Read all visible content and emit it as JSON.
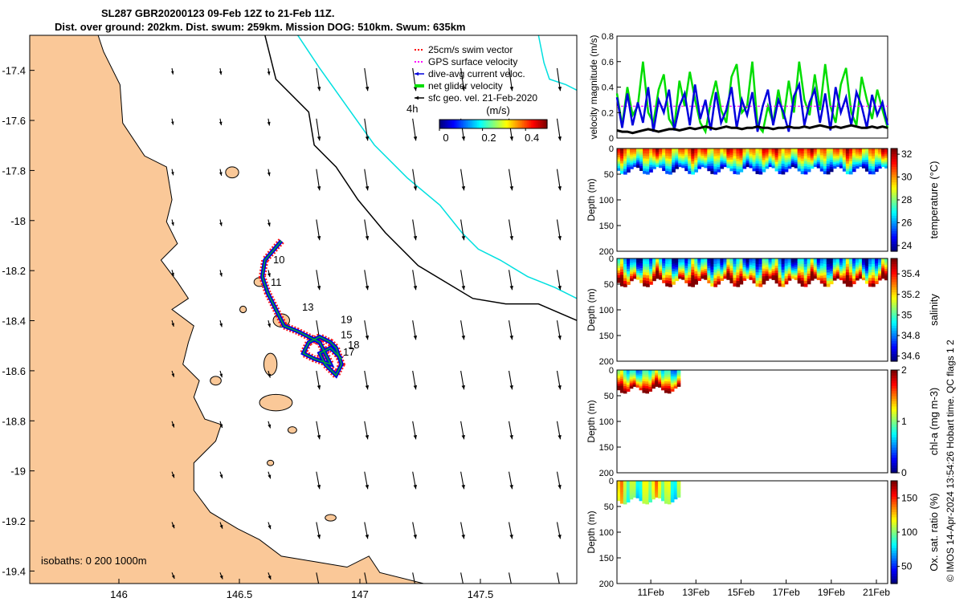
{
  "title_line1": "SL287 GBR20200123 09-Feb 12Z to 21-Feb 11Z.",
  "title_line2": "Dist. over ground: 202km. Dist. swum: 259km. Mission DOG: 510km. Swum: 635km",
  "credit": "© IMOS 14-Apr-2024 13:54:26 Hobart time. QC flags 1  2",
  "colors": {
    "land": "#fac898",
    "track": "#0000dd",
    "swim": "#ff0000",
    "gps": "#ff00ff",
    "net": "#00dd00",
    "isobath_200": "#000000",
    "isobath_1000": "#00e0e0"
  },
  "chart_data": [
    {
      "type": "map",
      "xticks": [
        "146",
        "146.5",
        "147",
        "147.5"
      ],
      "xtick_values": [
        146,
        146.5,
        147,
        147.5
      ],
      "yticks": [
        "-17.4",
        "-17.6",
        "-17.8",
        "-18",
        "-18.2",
        "-18.4",
        "-18.6",
        "-18.8",
        "-19",
        "-19.2",
        "-19.4"
      ],
      "ytick_values": [
        -17.4,
        -17.6,
        -17.8,
        -18,
        -18.2,
        -18.4,
        -18.6,
        -18.8,
        -19,
        -19.2,
        -19.4
      ],
      "xlim": [
        145.63,
        147.9
      ],
      "ylim": [
        -19.45,
        -17.26
      ],
      "legend": [
        {
          "label": "25cm/s swim vector",
          "color": "#ff0000",
          "style": "dash"
        },
        {
          "label": "GPS surface velocity",
          "color": "#ff00ff",
          "style": "dash"
        },
        {
          "label": "dive-avg current veloc.",
          "color": "#0000dd",
          "style": "arrow"
        },
        {
          "label": "net glider velocity",
          "color": "#00dd00",
          "style": "thick"
        },
        {
          "label": "sfc geo. vel. 21-Feb-2020",
          "color": "#000000",
          "style": "arrow"
        }
      ],
      "time_label": "4h",
      "colorbar_label": "(m/s)",
      "colorbar_ticks": [
        "0",
        "0.2",
        "0.4"
      ],
      "colorbar_tick_values": [
        0,
        0.2,
        0.4
      ],
      "colorbar_range": [
        0,
        0.5
      ],
      "isobaths_label": "isobaths: 0   200  1000m",
      "day_labels": [
        {
          "text": "10",
          "lon": 146.64,
          "lat": -18.17
        },
        {
          "text": "11",
          "lon": 146.63,
          "lat": -18.26
        },
        {
          "text": "13",
          "lon": 146.76,
          "lat": -18.36
        },
        {
          "text": "19",
          "lon": 146.92,
          "lat": -18.41
        },
        {
          "text": "15",
          "lon": 146.92,
          "lat": -18.47
        },
        {
          "text": "18",
          "lon": 146.95,
          "lat": -18.51
        },
        {
          "text": "17",
          "lon": 146.93,
          "lat": -18.54
        }
      ]
    },
    {
      "type": "line",
      "ylabel": "velocity magnitude (m/s)",
      "ylim": [
        0,
        0.8
      ],
      "yticks": [
        "0",
        "0.2",
        "0.4",
        "0.6",
        "0.8"
      ],
      "ytick_values": [
        0,
        0.2,
        0.4,
        0.6,
        0.8
      ],
      "xlim": [
        9.5,
        21.5
      ],
      "series": [
        {
          "color": "#00dd00",
          "values": [
            0.35,
            0.1,
            0.4,
            0.18,
            0.25,
            0.6,
            0.2,
            0.12,
            0.38,
            0.5,
            0.15,
            0.08,
            0.45,
            0.25,
            0.52,
            0.3,
            0.12,
            0.05,
            0.28,
            0.45,
            0.22,
            0.12,
            0.48,
            0.58,
            0.2,
            0.25,
            0.6,
            0.1,
            0.05,
            0.25,
            0.12,
            0.38,
            0.15,
            0.45,
            0.2,
            0.6,
            0.3,
            0.18,
            0.5,
            0.22,
            0.58,
            0.25,
            0.12,
            0.42,
            0.55,
            0.2,
            0.1,
            0.48,
            0.3,
            0.15,
            0.38,
            0.22,
            0.08
          ]
        },
        {
          "color": "#ff00ff",
          "values": [
            0.25,
            0.25,
            0.25,
            0.25,
            0.25,
            0.25,
            0.25,
            0.25,
            0.25,
            0.25,
            0.25,
            0.25,
            0.25,
            0.25,
            0.25,
            0.25,
            0.25,
            0.25,
            0.25,
            0.25,
            0.25,
            0.25,
            0.25,
            0.25,
            0.25,
            0.25,
            0.25,
            0.25,
            0.25,
            0.25,
            0.25,
            0.25,
            0.25,
            0.25,
            0.25,
            0.25,
            0.25,
            0.25,
            0.25,
            0.25,
            0.25,
            0.25,
            0.25,
            0.25,
            0.25,
            0.25,
            0.25,
            0.25,
            0.25,
            0.25,
            0.25,
            0.25,
            0.25
          ]
        },
        {
          "color": "#0000dd",
          "values": [
            0.32,
            0.08,
            0.35,
            0.1,
            0.28,
            0.12,
            0.4,
            0.05,
            0.3,
            0.2,
            0.38,
            0.06,
            0.25,
            0.35,
            0.1,
            0.42,
            0.15,
            0.3,
            0.06,
            0.36,
            0.12,
            0.22,
            0.4,
            0.08,
            0.3,
            0.18,
            0.36,
            0.05,
            0.25,
            0.38,
            0.1,
            0.3,
            0.2,
            0.05,
            0.33,
            0.42,
            0.1,
            0.28,
            0.38,
            0.12,
            0.35,
            0.06,
            0.4,
            0.2,
            0.32,
            0.1,
            0.36,
            0.25,
            0.08,
            0.34,
            0.18,
            0.28,
            0.1
          ]
        },
        {
          "color": "#000000",
          "values": [
            0.06,
            0.05,
            0.05,
            0.04,
            0.05,
            0.06,
            0.07,
            0.06,
            0.05,
            0.06,
            0.07,
            0.07,
            0.06,
            0.07,
            0.08,
            0.07,
            0.08,
            0.09,
            0.08,
            0.07,
            0.08,
            0.09,
            0.08,
            0.08,
            0.07,
            0.08,
            0.08,
            0.09,
            0.08,
            0.08,
            0.07,
            0.08,
            0.08,
            0.09,
            0.08,
            0.08,
            0.09,
            0.08,
            0.09,
            0.1,
            0.09,
            0.08,
            0.09,
            0.08,
            0.09,
            0.1,
            0.09,
            0.08,
            0.08,
            0.09,
            0.08,
            0.09,
            0.08
          ]
        }
      ]
    },
    {
      "type": "heatmap",
      "ylabel": "Depth (m)",
      "ylim": [
        200,
        0
      ],
      "yticks": [
        "0",
        "50",
        "100",
        "150",
        "200"
      ],
      "ytick_values": [
        0,
        50,
        100,
        150,
        200
      ],
      "xlim": [
        9.5,
        21.5
      ],
      "data_x_range": [
        9.5,
        21.5
      ],
      "data_depth": [
        0,
        50
      ],
      "colorbar_label": "temperature (°C)",
      "colorbar_ticks": [
        "24",
        "26",
        "28",
        "30",
        "32"
      ],
      "colorbar_tick_values": [
        24,
        26,
        28,
        30,
        32
      ],
      "colorbar_range": [
        23.5,
        32.5
      ],
      "surface_value": 30.5,
      "deep_value": 25
    },
    {
      "type": "heatmap",
      "ylabel": "Depth (m)",
      "ylim": [
        200,
        0
      ],
      "yticks": [
        "0",
        "50",
        "100",
        "150",
        "200"
      ],
      "ytick_values": [
        0,
        50,
        100,
        150,
        200
      ],
      "xlim": [
        9.5,
        21.5
      ],
      "data_x_range": [
        9.5,
        21.5
      ],
      "data_depth": [
        0,
        55
      ],
      "colorbar_label": "salinity",
      "colorbar_ticks": [
        "34.6",
        "34.8",
        "35",
        "35.2",
        "35.4"
      ],
      "colorbar_tick_values": [
        34.6,
        34.8,
        35,
        35.2,
        35.4
      ],
      "colorbar_range": [
        34.55,
        35.55
      ],
      "surface_value": 34.8,
      "deep_value": 35.5
    },
    {
      "type": "heatmap",
      "ylabel": "Depth (m)",
      "ylim": [
        200,
        0
      ],
      "yticks": [
        "0",
        "50",
        "100",
        "150",
        "200"
      ],
      "ytick_values": [
        0,
        50,
        100,
        150,
        200
      ],
      "xlim": [
        9.5,
        21.5
      ],
      "data_x_range": [
        9.5,
        12.3
      ],
      "data_depth": [
        0,
        45
      ],
      "colorbar_label": "chl-a (mg m-3)",
      "colorbar_ticks": [
        "0",
        "1",
        "2"
      ],
      "colorbar_tick_values": [
        0,
        1,
        2
      ],
      "colorbar_range": [
        0,
        2
      ],
      "surface_value": 0.8,
      "deep_value": 2
    },
    {
      "type": "heatmap",
      "ylabel": "Depth (m)",
      "ylim": [
        200,
        0
      ],
      "yticks": [
        "0",
        "50",
        "100",
        "150",
        "200"
      ],
      "ytick_values": [
        0,
        50,
        100,
        150,
        200
      ],
      "xlim": [
        9.5,
        21.5
      ],
      "data_x_range": [
        9.5,
        12.3
      ],
      "data_depth": [
        0,
        45
      ],
      "xticks": [
        "11Feb",
        "13Feb",
        "15Feb",
        "17Feb",
        "19Feb",
        "21Feb"
      ],
      "xtick_values": [
        11,
        13,
        15,
        17,
        19,
        21
      ],
      "colorbar_label": "Ox. sat. ratio (%)",
      "colorbar_ticks": [
        "50",
        "100",
        "150"
      ],
      "colorbar_tick_values": [
        50,
        100,
        150
      ],
      "colorbar_range": [
        25,
        175
      ],
      "surface_value": 110,
      "deep_value": 100
    }
  ]
}
